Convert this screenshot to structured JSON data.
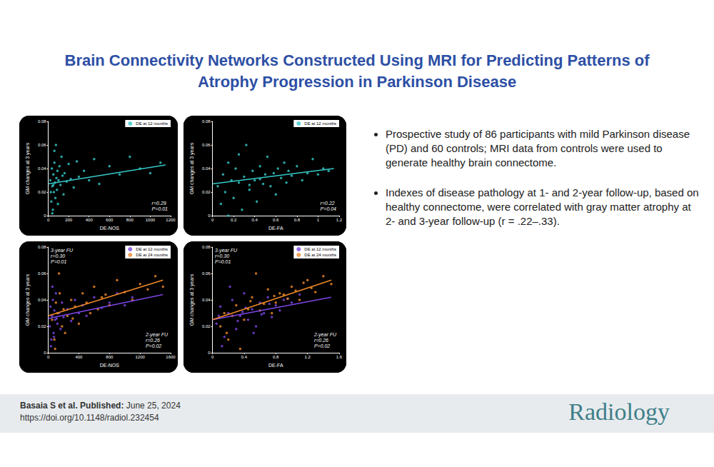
{
  "title": "Brain Connectivity Networks Constructed Using MRI for Predicting Patterns of Atrophy Progression in Parkinson Disease",
  "chart_data": [
    {
      "type": "scatter",
      "x_label": "DE-NOS",
      "y_label": "GM changes at 3 years",
      "xlim": [
        0,
        1200
      ],
      "xticks": [
        0,
        200,
        400,
        600,
        800,
        1000,
        1200
      ],
      "ylim": [
        0,
        0.08
      ],
      "yticks": [
        0,
        0.02,
        0.04,
        0.06,
        0.08
      ],
      "grid": false,
      "legend": "upper right",
      "series": [
        {
          "name": "DE at 12 months",
          "color": "#35c9c9",
          "marker": "circle",
          "x": [
            20,
            30,
            35,
            40,
            45,
            50,
            55,
            60,
            65,
            70,
            75,
            80,
            85,
            90,
            95,
            100,
            110,
            120,
            130,
            140,
            150,
            160,
            180,
            200,
            220,
            250,
            280,
            300,
            350,
            400,
            450,
            500,
            600,
            700,
            800,
            900,
            1000,
            1100,
            40,
            60,
            25,
            50
          ],
          "values": [
            0.03,
            0.012,
            0.04,
            0.025,
            0.005,
            0.035,
            0.02,
            0.045,
            0.028,
            0.015,
            0.06,
            0.032,
            0.022,
            0.038,
            0.01,
            0.03,
            0.042,
            0.026,
            0.05,
            0.034,
            0.018,
            0.036,
            0.029,
            0.044,
            0.031,
            0.024,
            0.046,
            0.033,
            0.038,
            0.03,
            0.048,
            0.027,
            0.042,
            0.035,
            0.05,
            0.04,
            0.036,
            0.045,
            0.002,
            0.055,
            0.02,
            0.026
          ],
          "fit": {
            "x": [
              0,
              1150
            ],
            "values": [
              0.027,
              0.043
            ]
          }
        }
      ],
      "annotations": [
        {
          "lines": [
            "r=0.29",
            "P=0.01"
          ]
        }
      ]
    },
    {
      "type": "scatter",
      "x_label": "DE-FA",
      "y_label": "GM changes at 3 years",
      "xlim": [
        0,
        1.2
      ],
      "xticks": [
        0,
        0.2,
        0.4,
        0.6,
        0.8,
        1,
        1.2
      ],
      "ylim": [
        0,
        0.08
      ],
      "yticks": [
        0,
        0.02,
        0.04,
        0.06,
        0.08
      ],
      "grid": false,
      "legend": "upper right",
      "series": [
        {
          "name": "DE at 12 months",
          "color": "#35c9c9",
          "marker": "circle",
          "x": [
            0.05,
            0.08,
            0.1,
            0.12,
            0.15,
            0.18,
            0.2,
            0.22,
            0.25,
            0.28,
            0.3,
            0.32,
            0.35,
            0.38,
            0.4,
            0.42,
            0.45,
            0.48,
            0.5,
            0.52,
            0.55,
            0.58,
            0.6,
            0.62,
            0.65,
            0.68,
            0.7,
            0.72,
            0.75,
            0.8,
            0.85,
            0.9,
            0.95,
            1.0,
            1.05,
            1.1,
            0.15,
            0.25,
            0.35,
            0.45
          ],
          "values": [
            0.025,
            0.01,
            0.035,
            0.02,
            0.045,
            0.03,
            0.015,
            0.04,
            0.028,
            0.005,
            0.033,
            0.06,
            0.022,
            0.038,
            0.03,
            0.012,
            0.042,
            0.027,
            0.035,
            0.05,
            0.025,
            0.036,
            0.018,
            0.04,
            0.032,
            0.045,
            0.028,
            0.038,
            0.034,
            0.042,
            0.03,
            0.036,
            0.048,
            0.035,
            0.04,
            0.038,
            0.0,
            0.052,
            0.026,
            0.031
          ],
          "fit": {
            "x": [
              0,
              1.15
            ],
            "values": [
              0.027,
              0.04
            ]
          }
        }
      ],
      "annotations": [
        {
          "lines": [
            "r=0.22",
            "P=0.04"
          ]
        }
      ]
    },
    {
      "type": "scatter",
      "x_label": "DE-NOS",
      "y_label": "GM changes at 3 years",
      "xlim": [
        0,
        1600
      ],
      "xticks": [
        0,
        400,
        800,
        1200,
        1600
      ],
      "ylim": [
        0,
        0.08
      ],
      "yticks": [
        0,
        0.02,
        0.04,
        0.06,
        0.08
      ],
      "grid": false,
      "legend": "upper right",
      "series": [
        {
          "name": "DE at 12 months",
          "color": "#7d45e6",
          "marker": "circle",
          "x": [
            20,
            30,
            40,
            50,
            60,
            70,
            80,
            90,
            100,
            120,
            140,
            160,
            180,
            200,
            250,
            300,
            350,
            400,
            450,
            500,
            600,
            700,
            800,
            900,
            1000,
            1100,
            35,
            55,
            75,
            110
          ],
          "values": [
            0.02,
            0.035,
            0.01,
            0.028,
            0.04,
            0.015,
            0.032,
            0.025,
            0.045,
            0.022,
            0.03,
            0.018,
            0.038,
            0.027,
            0.033,
            0.024,
            0.04,
            0.03,
            0.036,
            0.028,
            0.042,
            0.034,
            0.038,
            0.045,
            0.036,
            0.042,
            0.005,
            0.05,
            0.012,
            0.026
          ],
          "fit": {
            "x": [
              0,
              1500
            ],
            "values": [
              0.026,
              0.044
            ]
          }
        },
        {
          "name": "DE at 24 months",
          "color": "#f08a2a",
          "marker": "circle",
          "x": [
            50,
            80,
            100,
            120,
            150,
            180,
            200,
            250,
            300,
            350,
            400,
            450,
            500,
            550,
            600,
            700,
            800,
            900,
            1000,
            1100,
            1200,
            1300,
            1400,
            1500,
            90,
            140,
            220,
            320,
            650,
            750
          ],
          "values": [
            0.025,
            0.01,
            0.038,
            0.03,
            0.045,
            0.02,
            0.033,
            0.028,
            0.04,
            0.035,
            0.022,
            0.045,
            0.038,
            0.03,
            0.05,
            0.042,
            0.036,
            0.055,
            0.046,
            0.04,
            0.052,
            0.048,
            0.058,
            0.05,
            0.003,
            0.06,
            0.015,
            0.026,
            0.033,
            0.044
          ],
          "fit": {
            "x": [
              0,
              1500
            ],
            "values": [
              0.028,
              0.055
            ]
          }
        }
      ],
      "annotations": [
        {
          "lines": [
            "3-year FU",
            "r=0.30",
            "P=0.01"
          ]
        },
        {
          "lines": [
            "2-year FU",
            "r=0.26",
            "P=0.02"
          ]
        }
      ]
    },
    {
      "type": "scatter",
      "x_label": "DE-FA",
      "y_label": "GM changes at 3 years",
      "xlim": [
        0,
        1.6
      ],
      "xticks": [
        0,
        0.4,
        0.8,
        1.2,
        1.6
      ],
      "ylim": [
        0,
        0.08
      ],
      "yticks": [
        0,
        0.02,
        0.04,
        0.06,
        0.08
      ],
      "grid": false,
      "legend": "upper right",
      "series": [
        {
          "name": "DE at 12 months",
          "color": "#7d45e6",
          "marker": "circle",
          "x": [
            0.05,
            0.1,
            0.15,
            0.2,
            0.25,
            0.3,
            0.35,
            0.4,
            0.45,
            0.5,
            0.55,
            0.6,
            0.65,
            0.7,
            0.75,
            0.8,
            0.85,
            0.9,
            1.0,
            1.1,
            0.12,
            0.22,
            0.32,
            0.42,
            0.52,
            0.62,
            0.72,
            0.95,
            0.08,
            0.38
          ],
          "values": [
            0.022,
            0.035,
            0.012,
            0.03,
            0.04,
            0.018,
            0.028,
            0.045,
            0.025,
            0.033,
            0.02,
            0.038,
            0.03,
            0.042,
            0.027,
            0.036,
            0.032,
            0.04,
            0.038,
            0.044,
            0.005,
            0.05,
            0.024,
            0.034,
            0.015,
            0.029,
            0.037,
            0.041,
            0.028,
            0.031
          ],
          "fit": {
            "x": [
              0,
              1.5
            ],
            "values": [
              0.025,
              0.042
            ]
          }
        },
        {
          "name": "DE at 24 months",
          "color": "#f08a2a",
          "marker": "circle",
          "x": [
            0.1,
            0.15,
            0.2,
            0.3,
            0.4,
            0.5,
            0.6,
            0.7,
            0.8,
            0.9,
            1.0,
            1.1,
            1.2,
            1.3,
            1.4,
            1.5,
            0.25,
            0.35,
            0.45,
            0.55,
            0.65,
            0.75,
            0.85,
            0.95,
            1.05,
            1.15,
            0.18,
            0.48,
            0.78,
            1.25
          ],
          "values": [
            0.02,
            0.03,
            0.01,
            0.036,
            0.025,
            0.042,
            0.032,
            0.048,
            0.038,
            0.044,
            0.05,
            0.04,
            0.055,
            0.046,
            0.058,
            0.052,
            0.028,
            0.003,
            0.033,
            0.06,
            0.037,
            0.03,
            0.045,
            0.041,
            0.047,
            0.053,
            0.015,
            0.039,
            0.043,
            0.049
          ],
          "fit": {
            "x": [
              0,
              1.5
            ],
            "values": [
              0.025,
              0.055
            ]
          }
        }
      ],
      "annotations": [
        {
          "lines": [
            "3-year FU",
            "r=0.30",
            "P=0.01"
          ]
        },
        {
          "lines": [
            "2-year FU",
            "r=0.26",
            "P=0.02"
          ]
        }
      ]
    }
  ],
  "bullets": [
    "Prospective study of 86 participants with mild Parkinson disease (PD) and 60 controls; MRI data from controls were used to generate healthy brain connectome.",
    "Indexes of disease pathology at 1- and 2-year follow-up, based on healthy connectome, were correlated with gray matter atrophy at 2- and 3-year follow-up (r = .22–.33)."
  ],
  "footer": {
    "author": "Basaia S et al.",
    "published_label": "Published:",
    "date": "June 25, 2024",
    "doi": "https://doi.org/10.1148/radiol.232454",
    "journal": "Radiology"
  }
}
